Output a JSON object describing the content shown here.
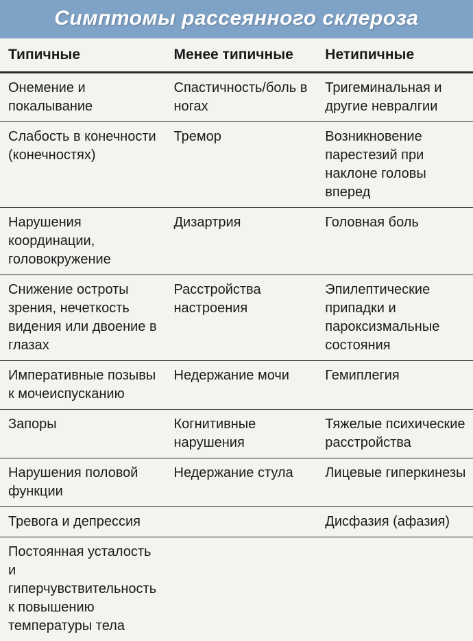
{
  "title": "Симптомы рассеянного склероза",
  "table": {
    "type": "table",
    "background_color": "#f5f3f0",
    "title_bar_color": "#7fa3c7",
    "title_text_color": "#ffffff",
    "title_fontsize": 30,
    "header_fontsize": 21,
    "cell_fontsize": 20,
    "border_color": "#2a2a2a",
    "header_border_width": 3,
    "row_border_width": 1.5,
    "column_widths_pct": [
      35,
      32,
      33
    ],
    "columns": [
      "Типичные",
      "Менее типичные",
      "Нетипичные"
    ],
    "rows": [
      [
        "Онемение и покалывание",
        "Спастичность/боль в ногах",
        "Тригеминальная и другие невралгии"
      ],
      [
        "Слабость в конечности (конечностях)",
        "Тремор",
        "Возникновение парестезий при наклоне головы вперед"
      ],
      [
        "Нарушения координации, головокружение",
        "Дизартрия",
        "Головная боль"
      ],
      [
        "Снижение остроты зрения, нечеткость видения или двоение в глазах",
        "Расстройства настроения",
        "Эпилептические припадки и пароксизмальные состояния"
      ],
      [
        "Императивные позывы к мочеиспусканию",
        "Недержание мочи",
        "Гемиплегия"
      ],
      [
        "Запоры",
        "Когнитивные нарушения",
        "Тяжелые психические расстройства"
      ],
      [
        "Нарушения половой функции",
        "Недержание стула",
        "Лицевые гиперкинезы"
      ],
      [
        "Тревога и депрессия",
        "",
        "Дисфазия (афазия)"
      ],
      [
        "Постоянная усталость и гиперчувствительность к повышению температуры тела",
        "",
        ""
      ]
    ]
  }
}
